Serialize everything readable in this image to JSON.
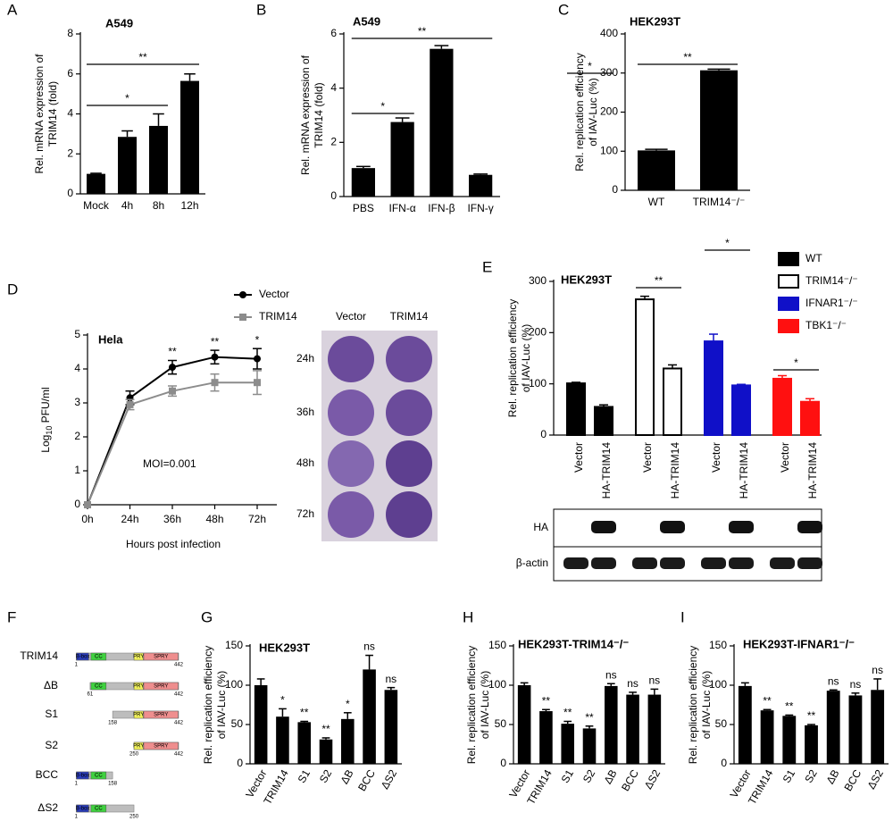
{
  "chart_data": [
    {
      "type": "bar",
      "panel": "A",
      "title": "A549",
      "y_label": [
        "Rel. mRNA expression of",
        "TRIM14 (fold)"
      ],
      "categories": [
        "Mock",
        "4h",
        "8h",
        "12h"
      ],
      "values": [
        1,
        2.85,
        3.4,
        5.65
      ],
      "errors": [
        0.03,
        0.3,
        0.6,
        0.35
      ],
      "color": "#000000",
      "ylim": [
        0,
        8
      ],
      "yticks": [
        0,
        2,
        4,
        6,
        8
      ],
      "annotations": [
        "*",
        "**"
      ]
    },
    {
      "type": "bar",
      "panel": "B",
      "title": "A549",
      "y_label": [
        "Rel. mRNA expression of",
        "TRIM14 (fold)"
      ],
      "categories": [
        "PBS",
        "IFN-α",
        "IFN-β",
        "IFN-γ"
      ],
      "values": [
        1.05,
        2.75,
        5.45,
        0.8
      ],
      "errors": [
        0.06,
        0.15,
        0.12,
        0.03
      ],
      "color": "#000000",
      "ylim": [
        0,
        6
      ],
      "yticks": [
        0,
        2,
        4,
        6
      ],
      "annotations": [
        "*",
        "**"
      ]
    },
    {
      "type": "bar",
      "panel": "C",
      "title": "HEK293T",
      "y_label": [
        "Rel. replication efficiency",
        "of IAV-Luc (%)"
      ],
      "categories": [
        "WT",
        "TRIM14⁻/⁻"
      ],
      "values": [
        102,
        307
      ],
      "errors": [
        3,
        3
      ],
      "color": "#000000",
      "ylim": [
        0,
        400
      ],
      "yticks": [
        0,
        100,
        200,
        300,
        400
      ],
      "annotations": [
        "**"
      ]
    },
    {
      "type": "line",
      "panel": "D",
      "title": "Hela",
      "y_label": [
        "Log",
        "10",
        " PFU/ml"
      ],
      "x_label": "Hours post infection",
      "categories": [
        "0h",
        "24h",
        "36h",
        "48h",
        "72h"
      ],
      "series": [
        {
          "name": "Vector",
          "color": "#000000",
          "values": [
            0,
            3.15,
            4.05,
            4.35,
            4.3
          ],
          "errors": [
            0,
            0.2,
            0.2,
            0.2,
            0.3
          ]
        },
        {
          "name": "TRIM14",
          "color": "#8c8c8c",
          "values": [
            0,
            2.95,
            3.35,
            3.6,
            3.6
          ],
          "errors": [
            0,
            0.15,
            0.15,
            0.25,
            0.35
          ]
        }
      ],
      "ylim": [
        0,
        5
      ],
      "yticks": [
        0,
        1,
        2,
        3,
        4,
        5
      ],
      "annotations": [
        "**",
        "**",
        "*"
      ],
      "note": "MOI=0.001",
      "plaque": {
        "columns": [
          "Vector",
          "TRIM14"
        ],
        "rows": [
          "24h",
          "36h",
          "48h",
          "72h"
        ]
      }
    },
    {
      "type": "grouped_bar",
      "panel": "E",
      "title": "HEK293T",
      "y_label": [
        "Rel. replication efficiency",
        "of IAV-Luc (%)"
      ],
      "categories": [
        "Vector",
        "HA-TRIM14"
      ],
      "series": [
        {
          "name": "WT",
          "color": "#000000",
          "values": [
            101,
            55
          ],
          "errors": [
            2,
            4
          ]
        },
        {
          "name": "TRIM14⁻/⁻",
          "color": "#ffffff",
          "values": [
            265,
            130
          ],
          "errors": [
            6,
            7
          ]
        },
        {
          "name": "IFNAR1⁻/⁻",
          "color": "#1010c8",
          "values": [
            183,
            97
          ],
          "errors": [
            14,
            2
          ]
        },
        {
          "name": "TBK1⁻/⁻",
          "color": "#ff1010",
          "values": [
            110,
            65
          ],
          "errors": [
            6,
            6
          ]
        }
      ],
      "ylim": [
        0,
        300
      ],
      "yticks": [
        0,
        100,
        200,
        300
      ],
      "annotations": [
        "*",
        "**",
        "*",
        "*"
      ],
      "legend": "right",
      "blot": [
        "HA",
        "β-actin"
      ]
    },
    {
      "type": "bar",
      "panel": "G",
      "title": "HEK293T",
      "y_label": [
        "Rel. replication efficiency",
        "of IAV-Luc (%)"
      ],
      "categories": [
        "Vector",
        "TRIM14",
        "S1",
        "S2",
        "ΔB",
        "BCC",
        "ΔS2"
      ],
      "values": [
        100,
        60,
        53,
        31,
        57,
        120,
        94
      ],
      "errors": [
        8,
        10,
        1,
        2,
        8,
        18,
        3
      ],
      "value_annotations": [
        null,
        "*",
        "**",
        "**",
        "*",
        "ns",
        "ns"
      ],
      "color": "#000000",
      "ylim": [
        0,
        150
      ],
      "yticks": [
        0,
        50,
        100,
        150
      ],
      "rotate_labels": true
    },
    {
      "type": "bar",
      "panel": "H",
      "title": "HEK293T-TRIM14⁻/⁻",
      "y_label": [
        "Rel. replication efficiency",
        "of IAV-Luc (%)"
      ],
      "categories": [
        "Vector",
        "TRIM14",
        "S1",
        "S2",
        "ΔB",
        "BCC",
        "ΔS2"
      ],
      "values": [
        100,
        67,
        51,
        45,
        99,
        88,
        88
      ],
      "errors": [
        3,
        2,
        3,
        3,
        3,
        3,
        7
      ],
      "value_annotations": [
        null,
        "**",
        "**",
        "**",
        "ns",
        "ns",
        "ns"
      ],
      "color": "#000000",
      "ylim": [
        0,
        150
      ],
      "yticks": [
        0,
        50,
        100,
        150
      ],
      "rotate_labels": true
    },
    {
      "type": "bar",
      "panel": "I",
      "title": "HEK293T-IFNAR1⁻/⁻",
      "y_label": [
        "Rel. replication efficiency",
        "of IAV-Luc (%)"
      ],
      "categories": [
        "Vector",
        "TRIM14",
        "S1",
        "S2",
        "ΔB",
        "BCC",
        "ΔS2"
      ],
      "values": [
        99,
        68,
        61,
        49,
        93,
        87,
        94
      ],
      "errors": [
        4,
        1,
        1,
        1,
        1,
        3,
        14
      ],
      "value_annotations": [
        null,
        "**",
        "**",
        "**",
        "ns",
        "ns",
        "ns"
      ],
      "color": "#000000",
      "ylim": [
        0,
        150
      ],
      "yticks": [
        0,
        50,
        100,
        150
      ],
      "rotate_labels": true
    }
  ],
  "panel_f": {
    "panel": "F",
    "domains": [
      "B-box",
      "CC",
      "PRY",
      "SPRY"
    ],
    "constructs": [
      {
        "name": "TRIM14",
        "start": 1,
        "end": 442
      },
      {
        "name": "ΔB",
        "start": 61,
        "end": 442
      },
      {
        "name": "S1",
        "start": 158,
        "end": 442
      },
      {
        "name": "S2",
        "start": 250,
        "end": 442
      },
      {
        "name": "BCC",
        "start": 1,
        "end": 158
      },
      {
        "name": "ΔS2",
        "start": 1,
        "end": 250
      }
    ]
  }
}
